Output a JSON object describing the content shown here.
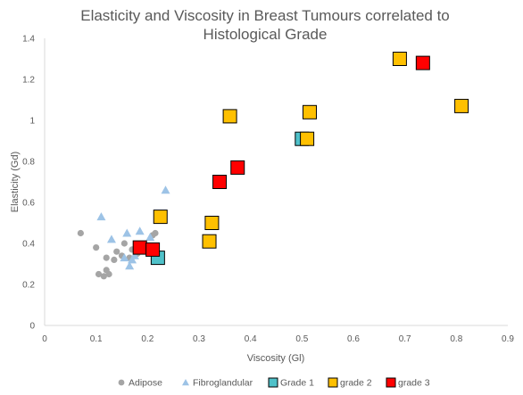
{
  "chart_data": {
    "type": "scatter",
    "title_lines": [
      "Elasticity and Viscosity in Breast Tumours correlated to",
      "Histological Grade"
    ],
    "xlabel": "Viscosity (Gl)",
    "ylabel": "Elasticity (Gd)",
    "xlim": [
      0,
      0.9
    ],
    "ylim": [
      0,
      1.4
    ],
    "x_ticks": [
      "0",
      "0.1",
      "0.2",
      "0.3",
      "0.4",
      "0.5",
      "0.6",
      "0.7",
      "0.8",
      "0.9"
    ],
    "y_ticks": [
      "0",
      "0.2",
      "0.4",
      "0.6",
      "0.8",
      "1",
      "1.2",
      "1.4"
    ],
    "grid": false,
    "legend_position": "bottom",
    "series": [
      {
        "name": "Adipose",
        "marker": "circle",
        "color": "#a5a5a5",
        "points": [
          [
            0.07,
            0.45
          ],
          [
            0.1,
            0.38
          ],
          [
            0.105,
            0.25
          ],
          [
            0.115,
            0.24
          ],
          [
            0.12,
            0.27
          ],
          [
            0.12,
            0.33
          ],
          [
            0.125,
            0.25
          ],
          [
            0.135,
            0.32
          ],
          [
            0.14,
            0.36
          ],
          [
            0.15,
            0.34
          ],
          [
            0.155,
            0.4
          ],
          [
            0.165,
            0.33
          ],
          [
            0.17,
            0.37
          ],
          [
            0.18,
            0.35
          ],
          [
            0.2,
            0.38
          ],
          [
            0.205,
            0.36
          ],
          [
            0.21,
            0.44
          ],
          [
            0.215,
            0.45
          ]
        ]
      },
      {
        "name": "Fibroglandular",
        "marker": "triangle",
        "color": "#9dc3e6",
        "points": [
          [
            0.11,
            0.53
          ],
          [
            0.13,
            0.42
          ],
          [
            0.155,
            0.33
          ],
          [
            0.16,
            0.45
          ],
          [
            0.165,
            0.29
          ],
          [
            0.17,
            0.32
          ],
          [
            0.175,
            0.34
          ],
          [
            0.185,
            0.46
          ],
          [
            0.205,
            0.43
          ],
          [
            0.235,
            0.66
          ]
        ]
      },
      {
        "name": "Grade 1",
        "marker": "square",
        "color": "#4fc1c9",
        "points": [
          [
            0.22,
            0.33
          ],
          [
            0.5,
            0.91
          ]
        ]
      },
      {
        "name": "grade 2",
        "marker": "square",
        "color": "#ffc000",
        "points": [
          [
            0.225,
            0.53
          ],
          [
            0.32,
            0.41
          ],
          [
            0.325,
            0.5
          ],
          [
            0.36,
            1.02
          ],
          [
            0.51,
            0.91
          ],
          [
            0.515,
            1.04
          ],
          [
            0.69,
            1.3
          ],
          [
            0.81,
            1.07
          ]
        ]
      },
      {
        "name": "grade 3",
        "marker": "square",
        "color": "#ff0000",
        "points": [
          [
            0.185,
            0.38
          ],
          [
            0.21,
            0.37
          ],
          [
            0.34,
            0.7
          ],
          [
            0.375,
            0.77
          ],
          [
            0.735,
            1.28
          ]
        ]
      }
    ]
  }
}
